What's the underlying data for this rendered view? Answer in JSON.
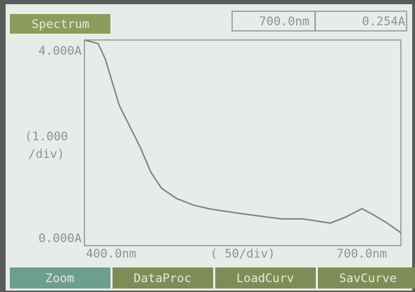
{
  "screen": {
    "title": "Spectrum",
    "cursor_wavelength": "700.0nm",
    "cursor_absorbance": "0.254A",
    "buttons": [
      "Zoom",
      "DataProc",
      "LoadCurv",
      "SavCurve"
    ]
  },
  "chart_data": {
    "type": "line",
    "y_scale_label": [
      "(1.000",
      "/div)"
    ],
    "x_scale_label": "(  50/div)",
    "x": [
      400,
      413,
      420,
      427,
      433,
      443,
      453,
      463,
      473,
      487,
      503,
      520,
      553,
      587,
      607,
      633,
      647,
      663,
      673,
      687,
      700
    ],
    "series": [
      {
        "color": "#7d837f",
        "values": [
          4.0,
          3.93,
          3.62,
          3.14,
          2.73,
          2.32,
          1.91,
          1.43,
          1.12,
          0.92,
          0.79,
          0.71,
          0.61,
          0.52,
          0.52,
          0.44,
          0.55,
          0.72,
          0.61,
          0.44,
          0.25
        ]
      }
    ],
    "xlim": [
      400,
      700
    ],
    "ylim": [
      0,
      4
    ],
    "xticks": [
      {
        "value": 400,
        "label": "400.0nm"
      },
      {
        "value": 700,
        "label": "700.0nm"
      }
    ],
    "yticks": [
      {
        "value": 4,
        "label": "4.000A"
      },
      {
        "value": 0,
        "label": "0.000A"
      }
    ]
  }
}
